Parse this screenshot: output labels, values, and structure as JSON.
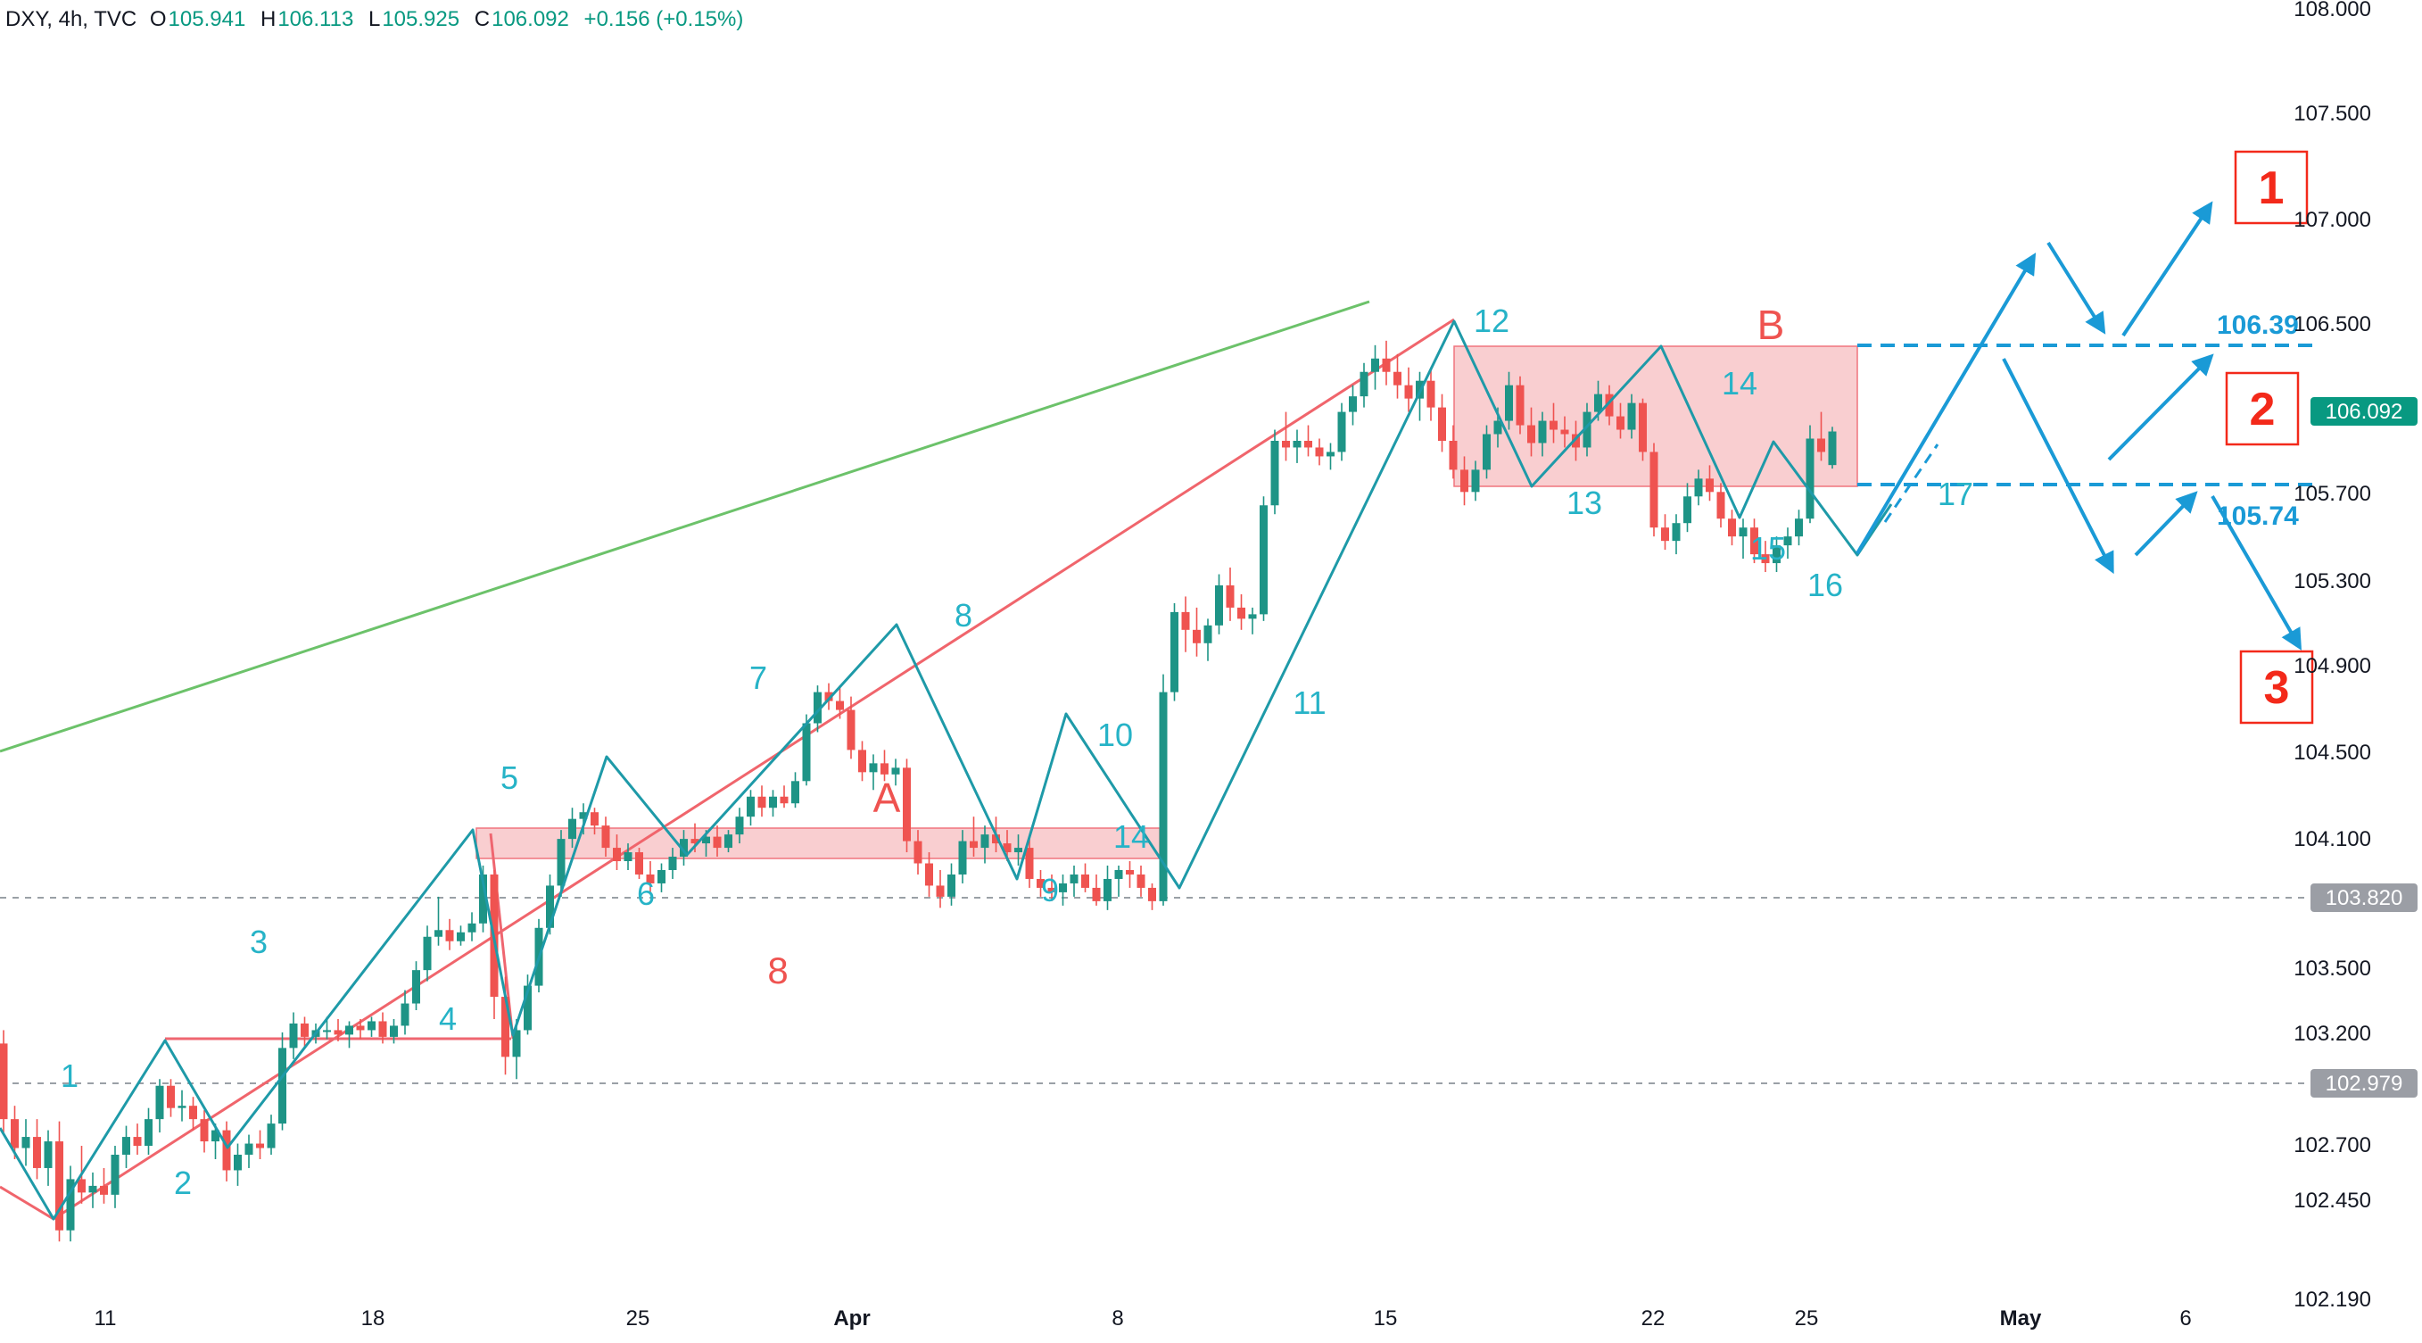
{
  "legend": {
    "symbol": "DXY, 4h, TVC",
    "o_label": "O",
    "o": "105.941",
    "h_label": "H",
    "h": "106.113",
    "l_label": "L",
    "l": "105.925",
    "c_label": "C",
    "c": "106.092",
    "change": "+0.156 (+0.15%)"
  },
  "colors": {
    "up": "#26a69a",
    "up_body": "#1e9486",
    "down": "#ef5350",
    "wave": "#1e9aa8",
    "wave_label": "#26b3c7",
    "red_line": "#f0656c",
    "green_line": "#6cc26a",
    "zone_fill": "#f9c9cc",
    "zone_stroke": "#ef6670",
    "projection": "#1a9ad6",
    "scenario_red": "#f3291a",
    "price_tag": "#089981",
    "gray_tag": "#9b9ea5"
  },
  "chart_data": {
    "type": "candlestick",
    "symbol": "DXY",
    "timeframe": "4h",
    "ylim": [
      102.05,
      108.0
    ],
    "y_ticks": [
      "108.000",
      "107.500",
      "107.000",
      "106.500",
      "105.700",
      "105.300",
      "104.900",
      "104.500",
      "104.100",
      "103.500",
      "103.200",
      "102.700",
      "102.450",
      "102.190"
    ],
    "x_ticks": [
      "11",
      "18",
      "25",
      "Apr",
      "8",
      "15",
      "22",
      "25",
      "May",
      "6"
    ],
    "last_price": "106.092",
    "horizontal_levels": [
      "103.820",
      "102.979"
    ],
    "candles": [
      [
        103.34,
        103.4,
        102.94,
        103.0
      ],
      [
        103.0,
        103.06,
        102.82,
        102.87
      ],
      [
        102.87,
        103.0,
        102.79,
        102.92
      ],
      [
        102.92,
        103.0,
        102.73,
        102.78
      ],
      [
        102.78,
        102.95,
        102.7,
        102.9
      ],
      [
        102.9,
        102.99,
        102.45,
        102.5
      ],
      [
        102.5,
        102.79,
        102.45,
        102.73
      ],
      [
        102.73,
        102.88,
        102.62,
        102.67
      ],
      [
        102.67,
        102.76,
        102.6,
        102.7
      ],
      [
        102.7,
        102.78,
        102.62,
        102.66
      ],
      [
        102.66,
        102.88,
        102.6,
        102.84
      ],
      [
        102.84,
        102.97,
        102.78,
        102.92
      ],
      [
        102.92,
        102.98,
        102.84,
        102.88
      ],
      [
        102.88,
        103.05,
        102.84,
        103.0
      ],
      [
        103.0,
        103.18,
        102.94,
        103.15
      ],
      [
        103.15,
        103.18,
        103.01,
        103.05
      ],
      [
        103.05,
        103.13,
        102.99,
        103.06
      ],
      [
        103.06,
        103.1,
        102.95,
        103.0
      ],
      [
        103.0,
        103.04,
        102.85,
        102.9
      ],
      [
        102.9,
        102.98,
        102.82,
        102.95
      ],
      [
        102.95,
        102.99,
        102.72,
        102.77
      ],
      [
        102.77,
        102.89,
        102.7,
        102.84
      ],
      [
        102.84,
        102.93,
        102.78,
        102.89
      ],
      [
        102.89,
        102.95,
        102.82,
        102.87
      ],
      [
        102.87,
        103.02,
        102.84,
        102.98
      ],
      [
        102.98,
        103.39,
        102.95,
        103.32
      ],
      [
        103.32,
        103.48,
        103.27,
        103.43
      ],
      [
        103.43,
        103.46,
        103.32,
        103.37
      ],
      [
        103.37,
        103.43,
        103.34,
        103.4
      ],
      [
        103.4,
        103.46,
        103.36,
        103.4
      ],
      [
        103.4,
        103.45,
        103.35,
        103.38
      ],
      [
        103.38,
        103.44,
        103.32,
        103.42
      ],
      [
        103.42,
        103.45,
        103.36,
        103.4
      ],
      [
        103.4,
        103.46,
        103.37,
        103.44
      ],
      [
        103.44,
        103.48,
        103.34,
        103.37
      ],
      [
        103.37,
        103.45,
        103.34,
        103.42
      ],
      [
        103.42,
        103.58,
        103.38,
        103.52
      ],
      [
        103.52,
        103.71,
        103.49,
        103.67
      ],
      [
        103.67,
        103.87,
        103.62,
        103.82
      ],
      [
        103.82,
        104.0,
        103.78,
        103.85
      ],
      [
        103.85,
        103.9,
        103.76,
        103.8
      ],
      [
        103.8,
        103.87,
        103.78,
        103.84
      ],
      [
        103.84,
        103.93,
        103.8,
        103.88
      ],
      [
        103.88,
        104.14,
        103.84,
        104.1
      ],
      [
        104.1,
        104.12,
        103.45,
        103.55
      ],
      [
        103.55,
        103.64,
        103.2,
        103.28
      ],
      [
        103.28,
        103.45,
        103.18,
        103.4
      ],
      [
        103.4,
        103.65,
        103.38,
        103.6
      ],
      [
        103.6,
        103.9,
        103.57,
        103.86
      ],
      [
        103.86,
        104.1,
        103.83,
        104.05
      ],
      [
        104.05,
        104.3,
        104.0,
        104.26
      ],
      [
        104.26,
        104.4,
        104.22,
        104.35
      ],
      [
        104.35,
        104.42,
        104.28,
        104.38
      ],
      [
        104.38,
        104.4,
        104.28,
        104.32
      ],
      [
        104.32,
        104.36,
        104.18,
        104.22
      ],
      [
        104.22,
        104.28,
        104.12,
        104.16
      ],
      [
        104.16,
        104.24,
        104.12,
        104.2
      ],
      [
        104.2,
        104.22,
        104.08,
        104.1
      ],
      [
        104.1,
        104.16,
        104.02,
        104.06
      ],
      [
        104.06,
        104.15,
        104.02,
        104.12
      ],
      [
        104.12,
        104.22,
        104.08,
        104.18
      ],
      [
        104.18,
        104.3,
        104.14,
        104.26
      ],
      [
        104.26,
        104.33,
        104.2,
        104.24
      ],
      [
        104.24,
        104.3,
        104.18,
        104.27
      ],
      [
        104.27,
        104.32,
        104.18,
        104.22
      ],
      [
        104.22,
        104.3,
        104.2,
        104.28
      ],
      [
        104.28,
        104.4,
        104.24,
        104.36
      ],
      [
        104.36,
        104.48,
        104.32,
        104.45
      ],
      [
        104.45,
        104.5,
        104.36,
        104.4
      ],
      [
        104.4,
        104.48,
        104.36,
        104.45
      ],
      [
        104.45,
        104.5,
        104.4,
        104.42
      ],
      [
        104.42,
        104.56,
        104.4,
        104.52
      ],
      [
        104.52,
        104.82,
        104.5,
        104.78
      ],
      [
        104.78,
        104.95,
        104.74,
        104.92
      ],
      [
        104.92,
        104.96,
        104.84,
        104.88
      ],
      [
        104.88,
        104.95,
        104.8,
        104.84
      ],
      [
        104.84,
        104.9,
        104.62,
        104.66
      ],
      [
        104.66,
        104.7,
        104.52,
        104.56
      ],
      [
        104.56,
        104.64,
        104.48,
        104.6
      ],
      [
        104.6,
        104.66,
        104.52,
        104.55
      ],
      [
        104.55,
        104.62,
        104.5,
        104.58
      ],
      [
        104.58,
        104.62,
        104.2,
        104.25
      ],
      [
        104.25,
        104.3,
        104.1,
        104.15
      ],
      [
        104.15,
        104.2,
        104.0,
        104.05
      ],
      [
        104.05,
        104.12,
        103.95,
        104.0
      ],
      [
        104.0,
        104.15,
        103.96,
        104.1
      ],
      [
        104.1,
        104.3,
        104.06,
        104.25
      ],
      [
        104.25,
        104.36,
        104.18,
        104.22
      ],
      [
        104.22,
        104.32,
        104.15,
        104.28
      ],
      [
        104.28,
        104.36,
        104.2,
        104.24
      ],
      [
        104.24,
        104.3,
        104.16,
        104.2
      ],
      [
        104.2,
        104.28,
        104.14,
        104.22
      ],
      [
        104.22,
        104.26,
        104.04,
        104.08
      ],
      [
        104.08,
        104.12,
        104.0,
        104.04
      ],
      [
        104.04,
        104.1,
        103.98,
        104.02
      ],
      [
        104.02,
        104.1,
        103.96,
        104.06
      ],
      [
        104.06,
        104.14,
        104.0,
        104.1
      ],
      [
        104.1,
        104.15,
        104.02,
        104.04
      ],
      [
        104.04,
        104.1,
        103.96,
        103.98
      ],
      [
        103.98,
        104.14,
        103.94,
        104.08
      ],
      [
        104.08,
        104.14,
        104.0,
        104.12
      ],
      [
        104.12,
        104.16,
        104.04,
        104.1
      ],
      [
        104.1,
        104.14,
        104.0,
        104.04
      ],
      [
        104.04,
        104.06,
        103.94,
        103.98
      ],
      [
        103.98,
        105.0,
        103.96,
        104.92
      ],
      [
        104.92,
        105.32,
        104.88,
        105.28
      ],
      [
        105.28,
        105.35,
        105.1,
        105.2
      ],
      [
        105.2,
        105.3,
        105.08,
        105.14
      ],
      [
        105.14,
        105.25,
        105.06,
        105.22
      ],
      [
        105.22,
        105.45,
        105.18,
        105.4
      ],
      [
        105.4,
        105.48,
        105.24,
        105.3
      ],
      [
        105.3,
        105.36,
        105.2,
        105.25
      ],
      [
        105.25,
        105.3,
        105.18,
        105.27
      ],
      [
        105.27,
        105.8,
        105.24,
        105.76
      ],
      [
        105.76,
        106.1,
        105.72,
        106.05
      ],
      [
        106.05,
        106.18,
        105.96,
        106.02
      ],
      [
        106.02,
        106.1,
        105.95,
        106.05
      ],
      [
        106.05,
        106.12,
        105.98,
        106.02
      ],
      [
        106.02,
        106.06,
        105.94,
        105.98
      ],
      [
        105.98,
        106.04,
        105.92,
        106.0
      ],
      [
        106.0,
        106.22,
        105.96,
        106.18
      ],
      [
        106.18,
        106.3,
        106.12,
        106.25
      ],
      [
        106.25,
        106.4,
        106.2,
        106.36
      ],
      [
        106.36,
        106.48,
        106.28,
        106.42
      ],
      [
        106.42,
        106.5,
        106.3,
        106.36
      ],
      [
        106.36,
        106.44,
        106.24,
        106.3
      ],
      [
        106.3,
        106.38,
        106.18,
        106.24
      ],
      [
        106.24,
        106.36,
        106.14,
        106.32
      ],
      [
        106.32,
        106.38,
        106.14,
        106.2
      ],
      [
        106.2,
        106.26,
        106.0,
        106.05
      ],
      [
        106.05,
        106.12,
        105.88,
        105.92
      ],
      [
        105.92,
        105.98,
        105.76,
        105.82
      ],
      [
        105.82,
        105.96,
        105.78,
        105.92
      ],
      [
        105.92,
        106.12,
        105.88,
        106.08
      ],
      [
        106.08,
        106.2,
        106.02,
        106.14
      ],
      [
        106.14,
        106.36,
        106.1,
        106.3
      ],
      [
        106.3,
        106.34,
        106.08,
        106.12
      ],
      [
        106.12,
        106.2,
        105.98,
        106.04
      ],
      [
        106.04,
        106.18,
        105.98,
        106.14
      ],
      [
        106.14,
        106.22,
        106.04,
        106.1
      ],
      [
        106.1,
        106.16,
        106.02,
        106.08
      ],
      [
        106.08,
        106.14,
        105.96,
        106.02
      ],
      [
        106.02,
        106.22,
        105.98,
        106.18
      ],
      [
        106.18,
        106.32,
        106.14,
        106.26
      ],
      [
        106.26,
        106.3,
        106.12,
        106.16
      ],
      [
        106.16,
        106.22,
        106.06,
        106.1
      ],
      [
        106.1,
        106.26,
        106.06,
        106.22
      ],
      [
        106.22,
        106.24,
        105.96,
        106.0
      ],
      [
        106.0,
        106.04,
        105.62,
        105.66
      ],
      [
        105.66,
        105.72,
        105.56,
        105.6
      ],
      [
        105.6,
        105.72,
        105.54,
        105.68
      ],
      [
        105.68,
        105.86,
        105.64,
        105.8
      ],
      [
        105.8,
        105.92,
        105.76,
        105.88
      ],
      [
        105.88,
        105.94,
        105.78,
        105.82
      ],
      [
        105.82,
        105.86,
        105.66,
        105.7
      ],
      [
        105.7,
        105.74,
        105.58,
        105.62
      ],
      [
        105.62,
        105.7,
        105.52,
        105.66
      ],
      [
        105.66,
        105.7,
        105.5,
        105.54
      ],
      [
        105.54,
        105.6,
        105.46,
        105.5
      ],
      [
        105.5,
        105.62,
        105.46,
        105.58
      ],
      [
        105.58,
        105.66,
        105.52,
        105.62
      ],
      [
        105.62,
        105.74,
        105.58,
        105.7
      ],
      [
        105.7,
        106.12,
        105.68,
        106.06
      ],
      [
        106.06,
        106.18,
        105.96,
        106.0
      ],
      [
        105.941,
        106.113,
        105.925,
        106.092
      ]
    ]
  },
  "wave_labels": [
    "1",
    "2",
    "3",
    "4",
    "5",
    "6",
    "7",
    "8",
    "9",
    "10",
    "11",
    "12",
    "13",
    "14",
    "14",
    "15",
    "16",
    "17"
  ],
  "red_labels": {
    "a": "A",
    "eight": "8",
    "b": "B"
  },
  "projection_levels": [
    "106.39",
    "105.74"
  ],
  "scenarios": [
    "1",
    "2",
    "3"
  ]
}
